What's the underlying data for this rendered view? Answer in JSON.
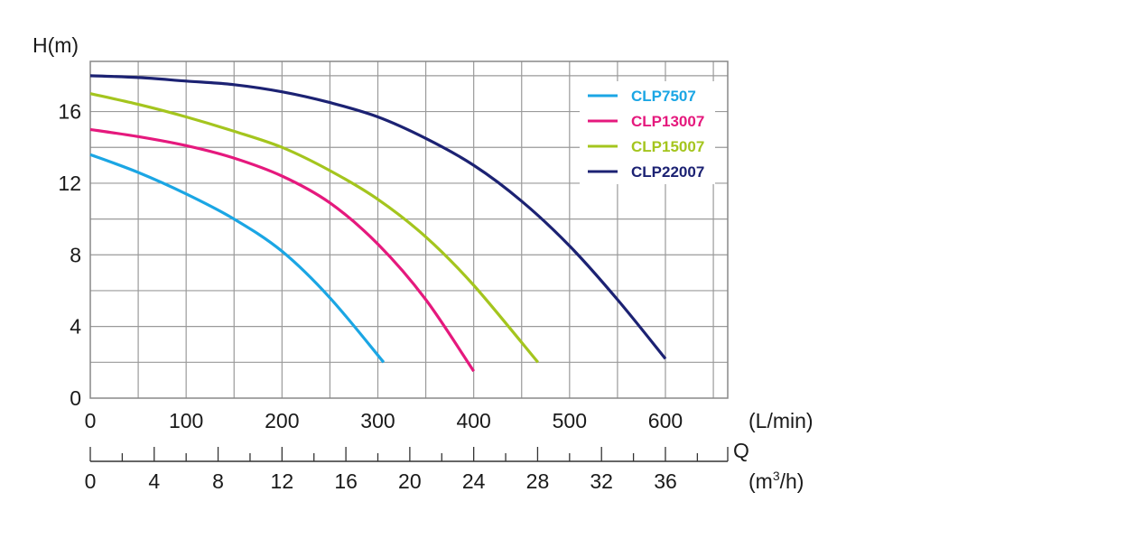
{
  "chart_data": {
    "type": "line",
    "ylabel": "H(m)",
    "x_unit_top": "(L/min)",
    "x_axis_symbol": "Q",
    "x_unit_bottom_base": "(m",
    "x_unit_bottom_sup": "3",
    "x_unit_bottom_tail": "/h)",
    "xlim": [
      0,
      665
    ],
    "ylim": [
      0,
      18.8
    ],
    "grid": true,
    "legend_position": "top-right",
    "y_ticks": [
      0,
      4,
      8,
      12,
      16
    ],
    "x_ticks_top": [
      0,
      100,
      200,
      300,
      400,
      500,
      600
    ],
    "x_ticks_bottom": [
      {
        "label": "0",
        "lpm": 0
      },
      {
        "label": "4",
        "lpm": 66.7
      },
      {
        "label": "8",
        "lpm": 133.3
      },
      {
        "label": "12",
        "lpm": 200
      },
      {
        "label": "16",
        "lpm": 266.7
      },
      {
        "label": "20",
        "lpm": 333.3
      },
      {
        "label": "24",
        "lpm": 400
      },
      {
        "label": "28",
        "lpm": 466.7
      },
      {
        "label": "32",
        "lpm": 533.3
      },
      {
        "label": "36",
        "lpm": 600
      }
    ],
    "series": [
      {
        "name": "CLP7507",
        "color": "#1ba6e4",
        "x": [
          0,
          50,
          100,
          150,
          200,
          250,
          306
        ],
        "y": [
          13.6,
          12.6,
          11.4,
          10.0,
          8.2,
          5.6,
          2.0
        ]
      },
      {
        "name": "CLP13007",
        "color": "#e5197d",
        "x": [
          0,
          50,
          100,
          150,
          200,
          250,
          300,
          350,
          400
        ],
        "y": [
          15.0,
          14.6,
          14.1,
          13.4,
          12.4,
          10.9,
          8.6,
          5.5,
          1.5
        ]
      },
      {
        "name": "CLP15007",
        "color": "#a4c51e",
        "x": [
          0,
          50,
          100,
          150,
          200,
          250,
          300,
          350,
          400,
          467
        ],
        "y": [
          17.0,
          16.4,
          15.7,
          14.9,
          14.0,
          12.7,
          11.1,
          9.0,
          6.3,
          2.0
        ]
      },
      {
        "name": "CLP22007",
        "color": "#1c2273",
        "x": [
          0,
          50,
          100,
          150,
          200,
          250,
          300,
          350,
          400,
          450,
          500,
          550,
          600
        ],
        "y": [
          18.0,
          17.9,
          17.7,
          17.5,
          17.1,
          16.5,
          15.7,
          14.5,
          13.0,
          11.0,
          8.5,
          5.5,
          2.2
        ]
      }
    ]
  }
}
